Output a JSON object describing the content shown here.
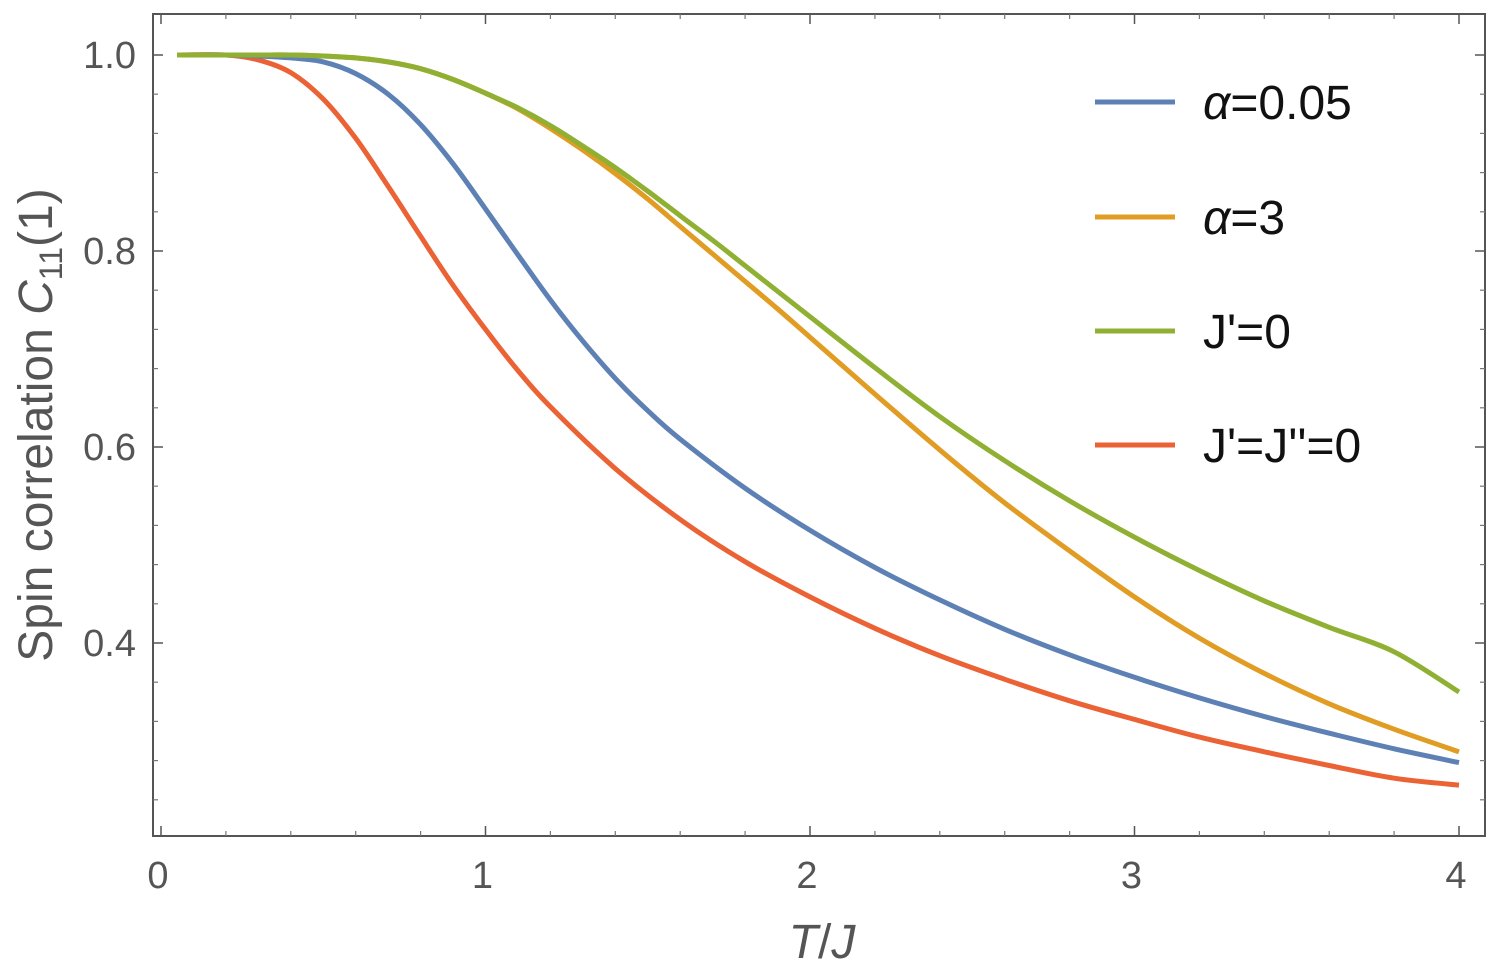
{
  "chart_data": {
    "type": "line",
    "title": "",
    "xlabel": {
      "var1": "T",
      "slash": "/",
      "var2": "J"
    },
    "ylabel": {
      "prefix": "Spin correlation ",
      "symbol": "C",
      "subscript": "11",
      "suffix": "(1)"
    },
    "xlim": [
      0,
      4
    ],
    "ylim": [
      0.22,
      1.04
    ],
    "x_ticks": [
      "0",
      "1",
      "2",
      "3",
      "4"
    ],
    "y_ticks": [
      "1.0",
      "0.8",
      "0.6",
      "0.4"
    ],
    "x_tick_values": [
      0,
      1,
      2,
      3,
      4
    ],
    "y_tick_values": [
      1.0,
      0.8,
      0.6,
      0.4
    ],
    "grid": false,
    "legend_position": "top-right",
    "series": [
      {
        "name": "α=0.05",
        "color": "#5E81B5",
        "x": [
          0.05,
          0.2,
          0.3,
          0.4,
          0.5,
          0.6,
          0.7,
          0.8,
          0.9,
          1.0,
          1.1,
          1.2,
          1.3,
          1.4,
          1.5,
          1.6,
          1.8,
          2.0,
          2.2,
          2.4,
          2.6,
          2.8,
          3.0,
          3.2,
          3.4,
          3.6,
          3.8,
          4.0
        ],
        "values": [
          1.0,
          1.0,
          0.999,
          0.997,
          0.993,
          0.981,
          0.96,
          0.929,
          0.889,
          0.843,
          0.796,
          0.75,
          0.708,
          0.67,
          0.637,
          0.608,
          0.558,
          0.515,
          0.477,
          0.444,
          0.414,
          0.388,
          0.365,
          0.344,
          0.325,
          0.308,
          0.292,
          0.278
        ]
      },
      {
        "name": "α=3",
        "color": "#E19C24",
        "x": [
          0.05,
          0.2,
          0.3,
          0.4,
          0.5,
          0.6,
          0.7,
          0.8,
          0.9,
          1.0,
          1.1,
          1.2,
          1.3,
          1.4,
          1.5,
          1.6,
          1.7,
          1.8,
          1.9,
          2.0,
          2.2,
          2.4,
          2.6,
          2.8,
          3.0,
          3.2,
          3.4,
          3.6,
          3.8,
          4.0
        ],
        "values": [
          1.0,
          1.0,
          1.0,
          1.0,
          0.999,
          0.997,
          0.993,
          0.986,
          0.975,
          0.961,
          0.945,
          0.925,
          0.903,
          0.879,
          0.853,
          0.825,
          0.797,
          0.769,
          0.741,
          0.712,
          0.654,
          0.597,
          0.543,
          0.494,
          0.447,
          0.405,
          0.369,
          0.338,
          0.312,
          0.289
        ]
      },
      {
        "name": "J'=0",
        "color": "#8FB032",
        "x": [
          0.05,
          0.2,
          0.3,
          0.4,
          0.5,
          0.6,
          0.7,
          0.8,
          0.9,
          1.0,
          1.1,
          1.2,
          1.3,
          1.4,
          1.5,
          1.6,
          1.7,
          1.8,
          1.9,
          2.0,
          2.2,
          2.4,
          2.6,
          2.8,
          3.0,
          3.2,
          3.4,
          3.6,
          3.8,
          4.0
        ],
        "values": [
          1.0,
          1.0,
          1.0,
          1.0,
          0.999,
          0.997,
          0.993,
          0.986,
          0.975,
          0.961,
          0.946,
          0.928,
          0.907,
          0.885,
          0.861,
          0.836,
          0.811,
          0.785,
          0.759,
          0.733,
          0.681,
          0.631,
          0.586,
          0.545,
          0.508,
          0.474,
          0.443,
          0.416,
          0.391,
          0.35
        ]
      },
      {
        "name": "J'=J''=0",
        "color": "#EB6235",
        "x": [
          0.05,
          0.2,
          0.3,
          0.4,
          0.5,
          0.6,
          0.7,
          0.8,
          0.9,
          1.0,
          1.1,
          1.2,
          1.4,
          1.6,
          1.8,
          2.0,
          2.2,
          2.4,
          2.6,
          2.8,
          3.0,
          3.2,
          3.4,
          3.6,
          3.8,
          4.0
        ],
        "values": [
          1.0,
          1.0,
          0.995,
          0.982,
          0.955,
          0.915,
          0.866,
          0.815,
          0.765,
          0.72,
          0.678,
          0.641,
          0.578,
          0.526,
          0.483,
          0.447,
          0.415,
          0.387,
          0.363,
          0.341,
          0.322,
          0.304,
          0.289,
          0.275,
          0.262,
          0.255
        ]
      }
    ]
  }
}
